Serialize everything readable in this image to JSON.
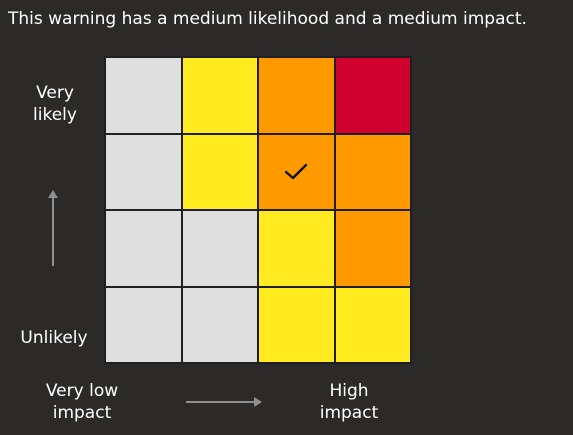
{
  "summary": "This warning has a medium likelihood and a medium impact.",
  "axes": {
    "likelihood_high": [
      "Very",
      "likely"
    ],
    "likelihood_low": "Unlikely",
    "impact_low": [
      "Very low",
      "impact"
    ],
    "impact_high": [
      "High",
      "impact"
    ]
  },
  "matrix": {
    "rows": [
      [
        "grey",
        "yellow",
        "amber",
        "red"
      ],
      [
        "grey",
        "yellow",
        "amber",
        "amber"
      ],
      [
        "grey",
        "grey",
        "yellow",
        "amber"
      ],
      [
        "grey",
        "grey",
        "yellow",
        "yellow"
      ]
    ],
    "selected": {
      "row": 1,
      "col": 2
    }
  },
  "colors": {
    "grey": "#dedede",
    "yellow": "#ffeb1f",
    "amber": "#ff9900",
    "red": "#d0002f"
  },
  "icons": {
    "selected": "check-icon",
    "likelihood_axis": "arrow-up-icon",
    "impact_axis": "arrow-right-icon"
  }
}
